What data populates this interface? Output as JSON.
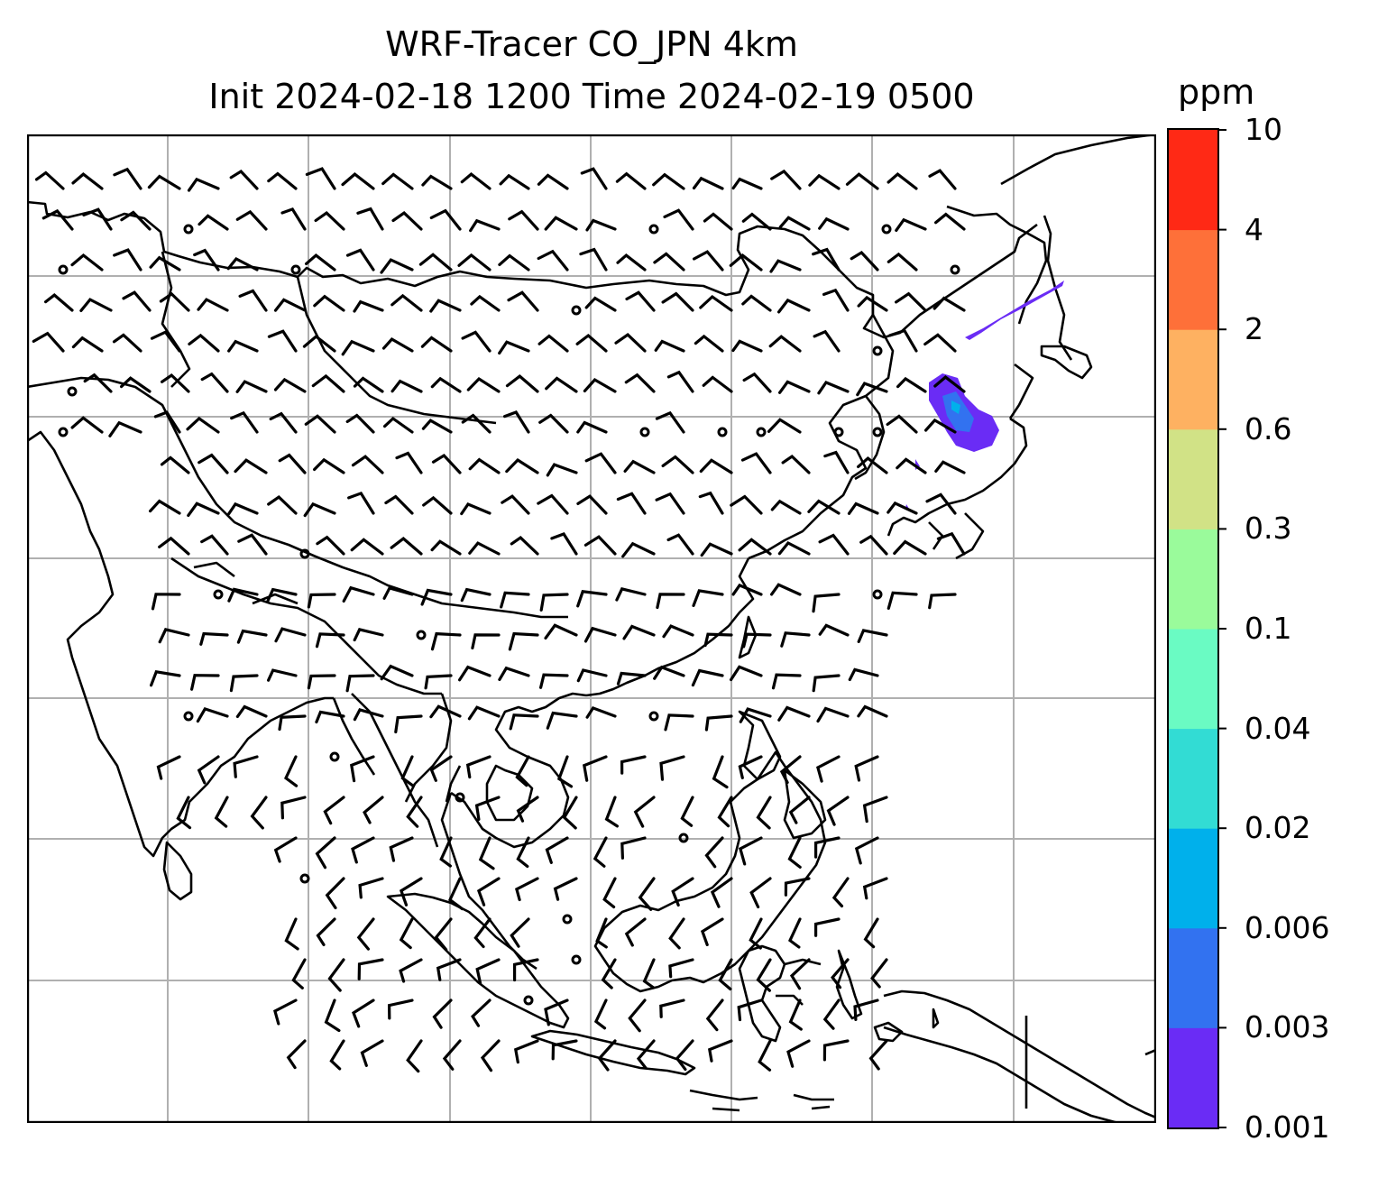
{
  "title": {
    "line1": "WRF-Tracer CO_JPN 4km",
    "line2": "Init 2024-02-18 1200 Time 2024-02-19 0500"
  },
  "colorbar": {
    "unit": "ppm",
    "levels": [
      "0.001",
      "0.003",
      "0.006",
      "0.02",
      "0.04",
      "0.1",
      "0.3",
      "0.6",
      "2",
      "4",
      "10"
    ],
    "colors": [
      "#6a2cf5",
      "#3272f0",
      "#00b0eb",
      "#32dcd4",
      "#6afbc3",
      "#9afb9b",
      "#d1e286",
      "#feb161",
      "#fe7039",
      "#ff2915"
    ]
  },
  "map": {
    "background": "#ffffff",
    "gridline_color": "#b0b0b0",
    "coastline_color": "#000000",
    "wind_barb_color": "#000000",
    "plume_colors": [
      "#6a2cf5",
      "#3272f0",
      "#00b0eb"
    ]
  }
}
